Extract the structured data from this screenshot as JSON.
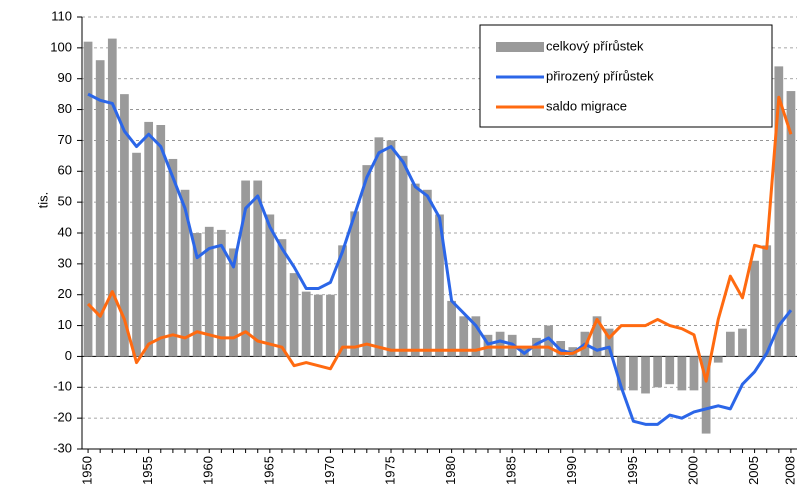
{
  "chart_data": {
    "type": "bar",
    "ylabel": "tis.",
    "categories": [
      "1950",
      null,
      null,
      null,
      null,
      "1955",
      null,
      null,
      null,
      null,
      "1960",
      null,
      null,
      null,
      null,
      "1965",
      null,
      null,
      null,
      null,
      "1970",
      null,
      null,
      null,
      null,
      "1975",
      null,
      null,
      null,
      null,
      "1980",
      null,
      null,
      null,
      null,
      "1985",
      null,
      null,
      null,
      null,
      "1990",
      null,
      null,
      null,
      null,
      "1995",
      null,
      null,
      null,
      null,
      "2000",
      null,
      null,
      null,
      null,
      "2005",
      null,
      null,
      "2008"
    ],
    "series": [
      {
        "name": "celkový přírůstek",
        "type": "bar",
        "color": "#9a9a9a",
        "values": [
          102,
          96,
          103,
          85,
          66,
          76,
          75,
          64,
          54,
          40,
          42,
          41,
          35,
          57,
          57,
          46,
          38,
          27,
          21,
          20,
          20,
          36,
          47,
          62,
          71,
          70,
          65,
          56,
          54,
          46,
          18,
          13,
          13,
          7,
          8,
          7,
          3,
          6,
          10,
          5,
          3,
          8,
          13,
          9,
          -11,
          -11,
          -12,
          -10,
          -9,
          -11,
          -11,
          -25,
          -2,
          8,
          9,
          31,
          36,
          94,
          86
        ]
      },
      {
        "name": "přirozený přírůstek",
        "type": "line",
        "color": "#2b66e8",
        "values": [
          85,
          83,
          82,
          73,
          68,
          72,
          68,
          58,
          48,
          32,
          35,
          36,
          29,
          48,
          52,
          42,
          35,
          29,
          22,
          22,
          24,
          34,
          46,
          58,
          66,
          68,
          63,
          55,
          52,
          45,
          18,
          14,
          10,
          4,
          5,
          4,
          1,
          4,
          6,
          2,
          1,
          4,
          2,
          3,
          -10,
          -21,
          -22,
          -22,
          -19,
          -20,
          -18,
          -17,
          -16,
          -17,
          -9,
          -5,
          1,
          10,
          15
        ]
      },
      {
        "name": "saldo migrace",
        "type": "line",
        "color": "#ff6a10",
        "values": [
          17,
          13,
          21,
          12,
          -2,
          4,
          6,
          7,
          6,
          8,
          7,
          6,
          6,
          8,
          5,
          4,
          3,
          -3,
          -2,
          -3,
          -4,
          3,
          3,
          4,
          3,
          2,
          2,
          2,
          2,
          2,
          2,
          2,
          2,
          3,
          3,
          3,
          3,
          3,
          3,
          1,
          1,
          3,
          12,
          6,
          10,
          10,
          10,
          12,
          10,
          9,
          7,
          -8,
          12,
          26,
          19,
          36,
          35,
          84,
          72
        ]
      }
    ],
    "ylim": [
      -30,
      110
    ],
    "yticks": [
      -30,
      -20,
      -10,
      0,
      10,
      20,
      30,
      40,
      50,
      60,
      70,
      80,
      90,
      100,
      110
    ],
    "grid": true,
    "legend": "top-right"
  }
}
